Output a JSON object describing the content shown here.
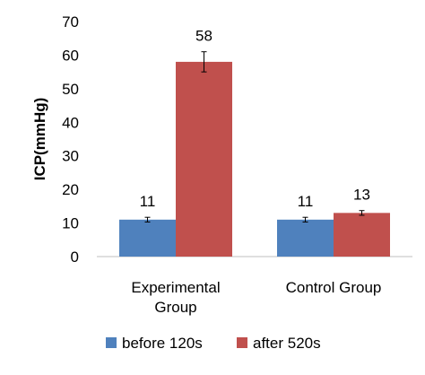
{
  "chart_data": {
    "type": "bar",
    "ylabel": "ICP(mmHg)",
    "xlabel": "",
    "ylim": [
      0,
      70
    ],
    "yticks": [
      0,
      10,
      20,
      30,
      40,
      50,
      60,
      70
    ],
    "categories": [
      [
        "Experimental",
        "Group"
      ],
      [
        "Control Group"
      ]
    ],
    "series": [
      {
        "name": "before 120s",
        "color": "#4f81bd",
        "values": [
          11,
          11
        ],
        "errors": [
          0.7,
          0.7
        ],
        "labels": [
          "11",
          "11"
        ]
      },
      {
        "name": "after 520s",
        "color": "#c0504d",
        "values": [
          58,
          13
        ],
        "errors": [
          3.0,
          0.7
        ],
        "labels": [
          "58",
          "13"
        ]
      }
    ],
    "legend_position": "bottom",
    "grid": false
  }
}
